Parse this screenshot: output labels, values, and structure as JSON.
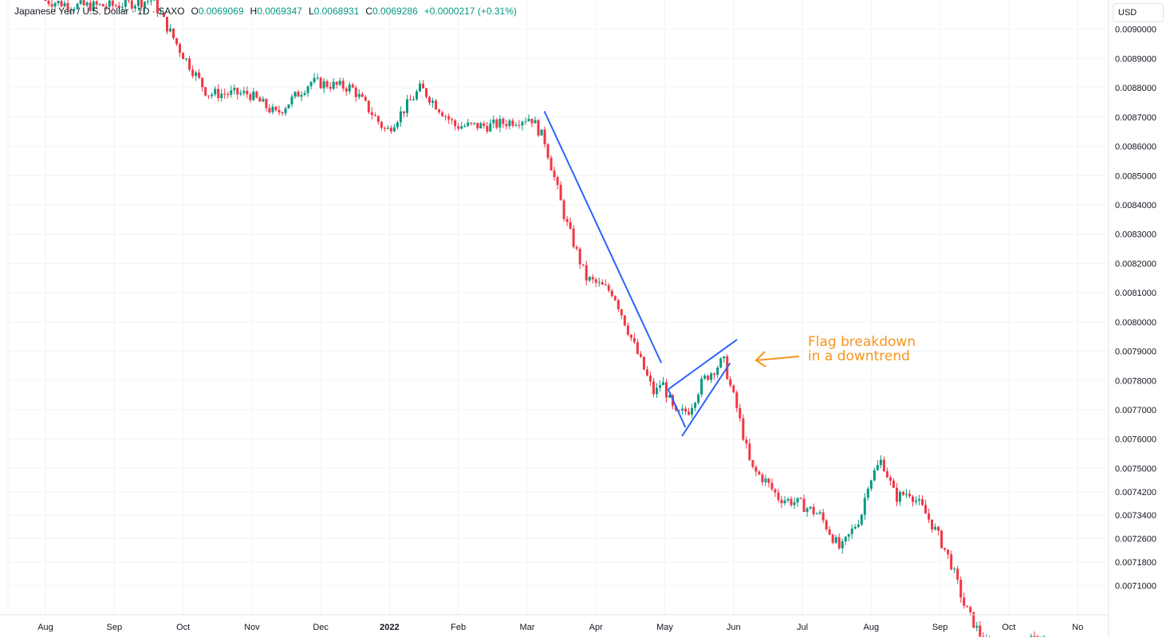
{
  "legend": {
    "symbol": "Japanese Yen / U.S. Dollar · 1D · SAXO",
    "open_key": "O",
    "open": "0.0069069",
    "high_key": "H",
    "high": "0.0069347",
    "low_key": "L",
    "low": "0.0068931",
    "close_key": "C",
    "close": "0.0069286",
    "change": "+0.0000217 (+0.31%)"
  },
  "currency": "USD",
  "annotation": {
    "line1": "Flag breakdown",
    "line2": "in a downtrend"
  },
  "colors": {
    "up": "#089981",
    "down": "#f23645",
    "trendline": "#2962ff",
    "annotation": "#f7941d",
    "grid": "#f0f3fa"
  },
  "chart_data": {
    "type": "candlestick",
    "grid": true,
    "x_tick_labels": [
      "Aug",
      "Sep",
      "Oct",
      "Nov",
      "Dec",
      "2022",
      "Feb",
      "Mar",
      "Apr",
      "May",
      "Jun",
      "Jul",
      "Aug",
      "Sep",
      "Oct",
      "No"
    ],
    "y_tick_labels": [
      "0.0090000",
      "0.0089000",
      "0.0088000",
      "0.0087000",
      "0.0086000",
      "0.0085000",
      "0.0084000",
      "0.0083000",
      "0.0082000",
      "0.0081000",
      "0.0080000",
      "0.0079000",
      "0.0078000",
      "0.0077000",
      "0.0076000",
      "0.0075000",
      "0.0074200",
      "0.0073400",
      "0.0072600",
      "0.0071800",
      "0.0071000"
    ],
    "y_ticks": [
      0.009,
      0.0089,
      0.0088,
      0.0087,
      0.0086,
      0.0085,
      0.0084,
      0.0083,
      0.0082,
      0.0081,
      0.008,
      0.0079,
      0.0078,
      0.0077,
      0.0076,
      0.0075,
      0.00742,
      0.00734,
      0.00726,
      0.00718,
      0.0071
    ],
    "ylim": [
      0.007,
      0.0091
    ],
    "x_range_months": [
      0,
      15.45
    ],
    "price_path_keypoints": [
      [
        0.0,
        0.0091
      ],
      [
        0.5,
        0.00908
      ],
      [
        1.0,
        0.00908
      ],
      [
        1.6,
        0.0091
      ],
      [
        2.0,
        0.00893
      ],
      [
        2.4,
        0.00878
      ],
      [
        3.0,
        0.00878
      ],
      [
        3.4,
        0.00871
      ],
      [
        3.9,
        0.00882
      ],
      [
        4.5,
        0.0088
      ],
      [
        5.0,
        0.00865
      ],
      [
        5.5,
        0.0088
      ],
      [
        6.0,
        0.00867
      ],
      [
        6.5,
        0.00867
      ],
      [
        7.1,
        0.0087
      ],
      [
        7.3,
        0.00862
      ],
      [
        7.6,
        0.00835
      ],
      [
        7.9,
        0.00815
      ],
      [
        8.3,
        0.0081
      ],
      [
        8.6,
        0.00792
      ],
      [
        8.9,
        0.00775
      ],
      [
        9.0,
        0.0078
      ],
      [
        9.2,
        0.00768
      ],
      [
        9.4,
        0.0077
      ],
      [
        9.6,
        0.0078
      ],
      [
        9.9,
        0.00787
      ],
      [
        10.0,
        0.00778
      ],
      [
        10.1,
        0.0077
      ],
      [
        10.3,
        0.0075
      ],
      [
        10.5,
        0.00746
      ],
      [
        10.7,
        0.0074
      ],
      [
        11.0,
        0.00738
      ],
      [
        11.3,
        0.00734
      ],
      [
        11.6,
        0.00722
      ],
      [
        11.9,
        0.00734
      ],
      [
        12.0,
        0.00745
      ],
      [
        12.2,
        0.00753
      ],
      [
        12.4,
        0.0074
      ],
      [
        12.6,
        0.00742
      ],
      [
        12.8,
        0.00736
      ],
      [
        13.0,
        0.00728
      ],
      [
        13.2,
        0.00718
      ],
      [
        13.4,
        0.00703
      ],
      [
        13.7,
        0.0069
      ],
      [
        14.1,
        0.00688
      ],
      [
        14.5,
        0.00692
      ]
    ],
    "trendlines": [
      {
        "name": "flagpole",
        "points": [
          [
            7.25,
            0.00872
          ],
          [
            8.95,
            0.00786
          ]
        ]
      },
      {
        "name": "flag-upper",
        "points": [
          [
            9.05,
            0.00777
          ],
          [
            10.05,
            0.00794
          ]
        ]
      },
      {
        "name": "flag-lower",
        "points": [
          [
            9.25,
            0.00761
          ],
          [
            9.95,
            0.00786
          ]
        ]
      },
      {
        "name": "flag-connector",
        "points": [
          [
            9.05,
            0.00777
          ],
          [
            9.3,
            0.00764
          ]
        ]
      }
    ]
  }
}
